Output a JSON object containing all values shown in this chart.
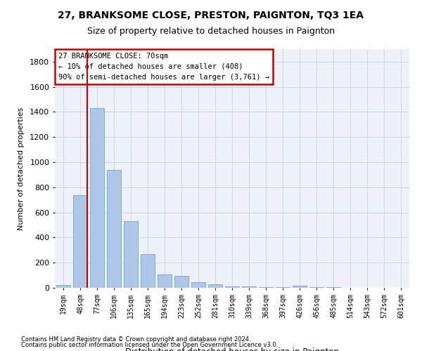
{
  "title1": "27, BRANKSOME CLOSE, PRESTON, PAIGNTON, TQ3 1EA",
  "title2": "Size of property relative to detached houses in Paignton",
  "xlabel": "Distribution of detached houses by size in Paignton",
  "ylabel": "Number of detached properties",
  "footer1": "Contains HM Land Registry data © Crown copyright and database right 2024.",
  "footer2": "Contains public sector information licensed under the Open Government Licence v3.0.",
  "categories": [
    "19sqm",
    "48sqm",
    "77sqm",
    "106sqm",
    "135sqm",
    "165sqm",
    "194sqm",
    "223sqm",
    "252sqm",
    "281sqm",
    "310sqm",
    "339sqm",
    "368sqm",
    "397sqm",
    "426sqm",
    "456sqm",
    "485sqm",
    "514sqm",
    "543sqm",
    "572sqm",
    "601sqm"
  ],
  "values": [
    20,
    740,
    1430,
    940,
    530,
    270,
    108,
    95,
    43,
    28,
    10,
    10,
    5,
    3,
    15,
    3,
    3,
    2,
    2,
    2,
    2
  ],
  "bar_color": "#aec6e8",
  "bar_edge_color": "#6aaad4",
  "grid_color": "#ccd8e8",
  "annotation_line_color": "#cc0000",
  "annotation_text": "27 BRANKSOME CLOSE: 70sqm\n← 10% of detached houses are smaller (408)\n90% of semi-detached houses are larger (3,761) →",
  "redline_bar_index": 1.4,
  "ylim": [
    0,
    1900
  ],
  "yticks": [
    0,
    200,
    400,
    600,
    800,
    1000,
    1200,
    1400,
    1600,
    1800
  ],
  "bg_color": "#ffffff",
  "plot_bg_color": "#eef2f8"
}
